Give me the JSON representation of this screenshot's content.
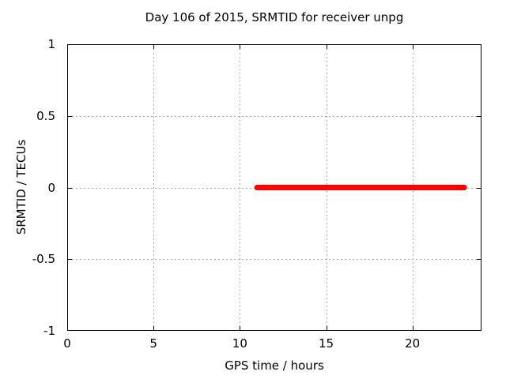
{
  "chart_data": {
    "type": "line",
    "title": "Day 106 of 2015, SRMTID for receiver unpg",
    "xlabel": "GPS time / hours",
    "ylabel": "SRMTID / TECUs",
    "xlim": [
      0,
      24
    ],
    "ylim": [
      -1,
      1
    ],
    "xticks": [
      0,
      5,
      10,
      15,
      20
    ],
    "yticks": [
      1,
      0.5,
      0,
      -0.5,
      -1
    ],
    "xtick_labels": [
      "0",
      "5",
      "10",
      "15",
      "20"
    ],
    "ytick_labels": [
      "1",
      "0.5",
      "0",
      "-0.5",
      "-1"
    ],
    "grid": true,
    "grid_style": "dotted",
    "legend": "none",
    "series": [
      {
        "name": "SRMTID",
        "color": "#ff0000",
        "linewidth": 7,
        "x": [
          11,
          23
        ],
        "y": [
          0,
          0
        ]
      }
    ]
  },
  "colors": {
    "background": "#ffffff",
    "border": "#000000",
    "grid": "#a8a8a8",
    "text": "#000000",
    "line": "#ff0000"
  }
}
